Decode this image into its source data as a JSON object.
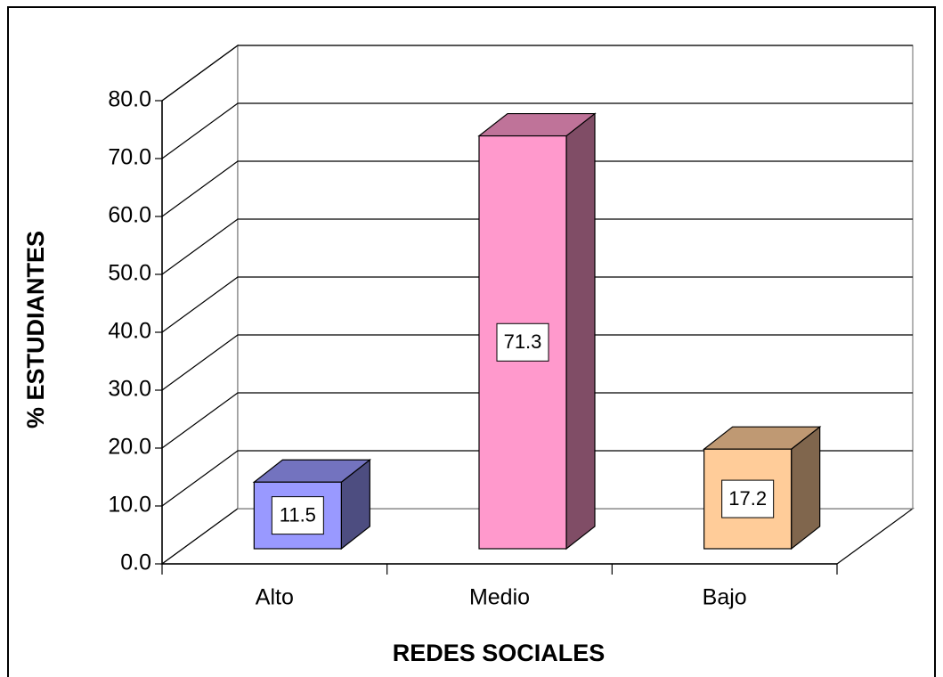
{
  "chart_data": {
    "type": "bar3d",
    "x_label": "REDES SOCIALES",
    "y_label": "% ESTUDIANTES",
    "categories": [
      "Alto",
      "Medio",
      "Bajo"
    ],
    "values": [
      11.5,
      71.3,
      17.2
    ],
    "colors": [
      "#9999ff",
      "#ff99cc",
      "#ffcc99"
    ],
    "ylim": [
      0,
      80
    ],
    "yticks": [
      {
        "value": 0,
        "label": "0.0"
      },
      {
        "value": 10,
        "label": "10.0"
      },
      {
        "value": 20,
        "label": "20.0"
      },
      {
        "value": 30,
        "label": "30.0"
      },
      {
        "value": 40,
        "label": "40.0"
      },
      {
        "value": 50,
        "label": "50.0"
      },
      {
        "value": 60,
        "label": "60.0"
      },
      {
        "value": 70,
        "label": "70.0"
      },
      {
        "value": 80,
        "label": "80.0"
      }
    ],
    "grid": true
  }
}
